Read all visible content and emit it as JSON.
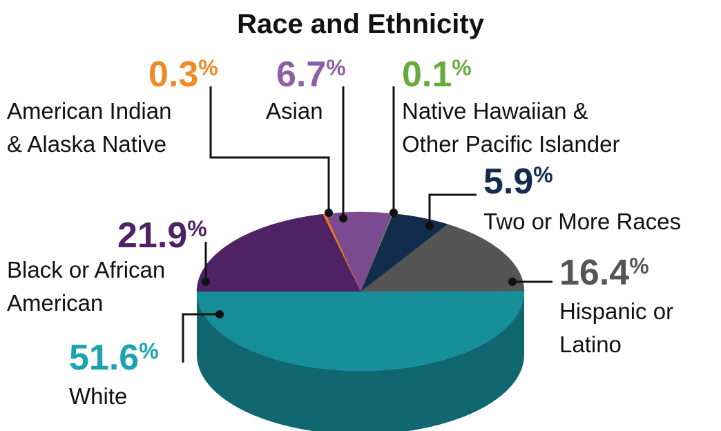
{
  "chart_data": {
    "type": "pie",
    "title": "Race and Ethnicity",
    "categories": [
      "White",
      "Hispanic or\nLatino",
      "Two or More Races",
      "Native Hawaiian &\nOther Pacific Islander",
      "Asian",
      "American Indian\n& Alaska Native",
      "Black or African\nAmerican"
    ],
    "values": [
      51.6,
      16.4,
      5.9,
      0.1,
      6.7,
      0.3,
      21.9
    ],
    "value_labels": [
      "51.6%",
      "16.4%",
      "5.9%",
      "0.1%",
      "6.7%",
      "0.3%",
      "21.9%"
    ],
    "colors": [
      "#168f9b",
      "#555555",
      "#132b4d",
      "#6aa33a",
      "#7b4a90",
      "#e87722",
      "#4f2266"
    ],
    "label_colors": [
      "#1ba3b0",
      "#555555",
      "#132b4d",
      "#6aaa3a",
      "#8e5ea6",
      "#f08a24",
      "#4f2266"
    ]
  }
}
